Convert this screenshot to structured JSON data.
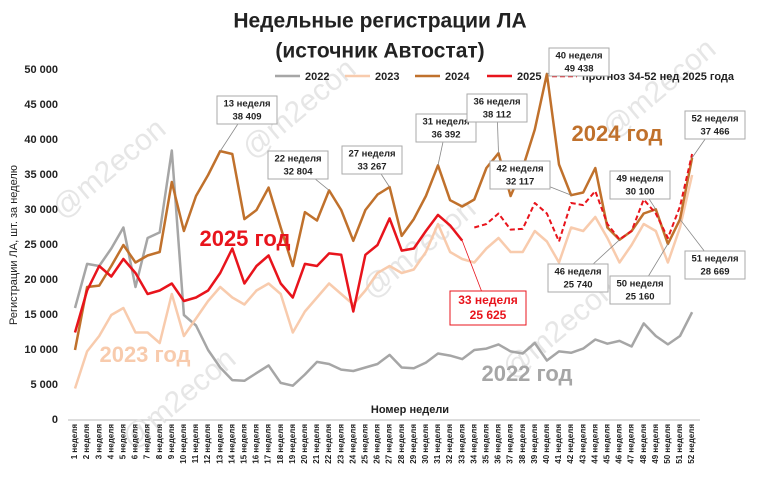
{
  "chart_data": {
    "type": "line",
    "title": [
      "Недельные регистрации ЛА",
      "(источник Автостат)"
    ],
    "y_label": "Регистрации ЛА, шт. за неделю",
    "x_label": "Номер недели",
    "watermark": "@m2econ",
    "categories": [
      "1 неделя",
      "2 неделя",
      "3 неделя",
      "4 неделя",
      "5 неделя",
      "6 неделя",
      "7 неделя",
      "8 неделя",
      "9 неделя",
      "10 неделя",
      "11 неделя",
      "12 неделя",
      "13 неделя",
      "14 неделя",
      "15 неделя",
      "16 неделя",
      "17 неделя",
      "18 неделя",
      "19 неделя",
      "20 неделя",
      "21 неделя",
      "22 неделя",
      "23 неделя",
      "24 неделя",
      "25 неделя",
      "26 неделя",
      "27 неделя",
      "28 неделя",
      "29 неделя",
      "30 неделя",
      "31 неделя",
      "32 неделя",
      "33 неделя",
      "34 неделя",
      "35 неделя",
      "36 неделя",
      "37 неделя",
      "38 неделя",
      "39 неделя",
      "40 неделя",
      "41 неделя",
      "42 неделя",
      "43 неделя",
      "44 неделя",
      "45 неделя",
      "46 неделя",
      "47 неделя",
      "48 неделя",
      "49 неделя",
      "50 неделя",
      "51 неделя",
      "52 неделя"
    ],
    "series": [
      {
        "name": "2022",
        "color": "#a6a6a6",
        "values": [
          16000,
          22300,
          22000,
          24500,
          27500,
          19000,
          26000,
          26800,
          38500,
          15000,
          13500,
          10000,
          7500,
          5700,
          5600,
          6700,
          7800,
          5300,
          4900,
          6500,
          8300,
          8000,
          7200,
          7000,
          7500,
          8000,
          9300,
          7500,
          7400,
          8200,
          9500,
          9200,
          8700,
          10000,
          10200,
          10800,
          9800,
          9500,
          11000,
          8500,
          9800,
          9600,
          10200,
          11500,
          10900,
          11300,
          10500,
          13800,
          12000,
          10800,
          12000,
          15400
        ]
      },
      {
        "name": "2023",
        "color": "#f8cbad",
        "values": [
          4500,
          9800,
          12000,
          15000,
          16000,
          12500,
          12500,
          11000,
          18000,
          12000,
          14500,
          17000,
          19000,
          17500,
          16500,
          18500,
          19500,
          18000,
          12500,
          15500,
          17500,
          19500,
          18000,
          16500,
          18500,
          21000,
          22000,
          21000,
          21500,
          24000,
          28000,
          24000,
          23000,
          22500,
          24500,
          26000,
          24000,
          24000,
          27000,
          25500,
          22500,
          27500,
          27000,
          29000,
          26000,
          22500,
          25000,
          28000,
          27000,
          22500,
          27500,
          35000
        ]
      },
      {
        "name": "2024",
        "color": "#c0712c",
        "values": [
          10000,
          19000,
          19200,
          22000,
          25000,
          22500,
          23500,
          24000,
          34000,
          27000,
          32000,
          35000,
          38409,
          38000,
          28700,
          30000,
          33200,
          27500,
          22000,
          29700,
          28500,
          32804,
          30000,
          25600,
          30000,
          32200,
          33267,
          26300,
          28700,
          32000,
          36392,
          31400,
          30500,
          31500,
          36000,
          38112,
          32000,
          36000,
          41500,
          49438,
          36500,
          32117,
          32500,
          36000,
          27500,
          25740,
          27000,
          29500,
          30100,
          25160,
          28669,
          37466
        ]
      },
      {
        "name": "2025",
        "color": "#e8141c",
        "values": [
          12500,
          18500,
          22000,
          20500,
          23000,
          21000,
          18000,
          18500,
          19500,
          17000,
          17500,
          18500,
          21000,
          24500,
          19500,
          22000,
          23500,
          19500,
          17500,
          22300,
          22000,
          23800,
          23600,
          15500,
          23600,
          25000,
          28800,
          24200,
          24500,
          27000,
          29300,
          27800,
          25625,
          null,
          null,
          null,
          null,
          null,
          null,
          null,
          null,
          null,
          null,
          null,
          null,
          null,
          null,
          null,
          null,
          null,
          null,
          null
        ]
      },
      {
        "name": "прогноз 34-52 нед 2025 года",
        "color": "#e8141c",
        "dashed": true,
        "values": [
          null,
          null,
          null,
          null,
          null,
          null,
          null,
          null,
          null,
          null,
          null,
          null,
          null,
          null,
          null,
          null,
          null,
          null,
          null,
          null,
          null,
          null,
          null,
          null,
          null,
          null,
          null,
          null,
          null,
          null,
          null,
          null,
          null,
          27500,
          28000,
          29500,
          27200,
          27300,
          31000,
          29500,
          25500,
          31000,
          30700,
          32700,
          28000,
          25800,
          27000,
          31500,
          29500,
          26000,
          30500,
          38000
        ]
      }
    ],
    "ylim": [
      0,
      50000
    ],
    "yticks": [
      0,
      {
        "value": 5000,
        "label": "5 000"
      },
      {
        "value": 10000,
        "label": "10 000"
      },
      {
        "value": 15000,
        "label": "15 000"
      },
      {
        "value": 20000,
        "label": "20 000"
      },
      {
        "value": 25000,
        "label": "25 000"
      },
      {
        "value": 30000,
        "label": "30 000"
      },
      {
        "value": 35000,
        "label": "35 000"
      },
      {
        "value": 40000,
        "label": "40 000"
      },
      {
        "value": 45000,
        "label": "45 000"
      },
      {
        "value": 50000,
        "label": "50 000"
      }
    ],
    "grid": false,
    "legend": "top",
    "callouts": [
      {
        "week": "13 неделя",
        "value": "38 409"
      },
      {
        "week": "22 неделя",
        "value": "32 804"
      },
      {
        "week": "27 неделя",
        "value": "33 267"
      },
      {
        "week": "31 неделя",
        "value": "36 392"
      },
      {
        "week": "36 неделя",
        "value": "38 112"
      },
      {
        "week": "40 неделя",
        "value": "49 438"
      },
      {
        "week": "42 неделя",
        "value": "32 117"
      },
      {
        "week": "46 неделя",
        "value": "25 740"
      },
      {
        "week": "49 неделя",
        "value": "30 100"
      },
      {
        "week": "50 неделя",
        "value": "25 160"
      },
      {
        "week": "51 неделя",
        "value": "28 669"
      },
      {
        "week": "52 неделя",
        "value": "37 466"
      },
      {
        "week": "33 неделя",
        "value": "25 625"
      }
    ],
    "year_labels": [
      "2025 год",
      "2024 год",
      "2023 год",
      "2022 год"
    ]
  }
}
